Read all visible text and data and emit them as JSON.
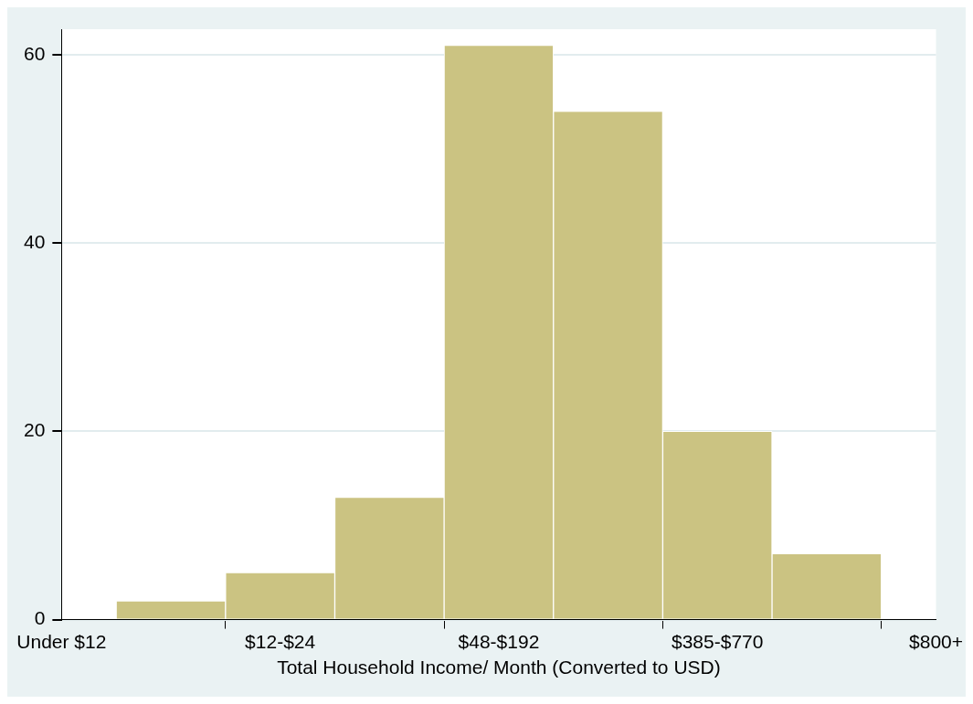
{
  "chart_data": {
    "type": "bar",
    "xlabel": "Total Household Income/ Month (Converted to USD)",
    "categories": [
      "Under $12",
      null,
      "$12-$24",
      null,
      "$48-$192",
      null,
      "$385-$770",
      null,
      "$800+"
    ],
    "values": [
      null,
      2,
      5,
      13,
      61,
      54,
      20,
      7,
      null
    ],
    "color": "#cbc382",
    "ylim": [
      0,
      62.7
    ],
    "yticks": [
      0,
      20,
      40,
      60
    ],
    "grid": "y"
  }
}
